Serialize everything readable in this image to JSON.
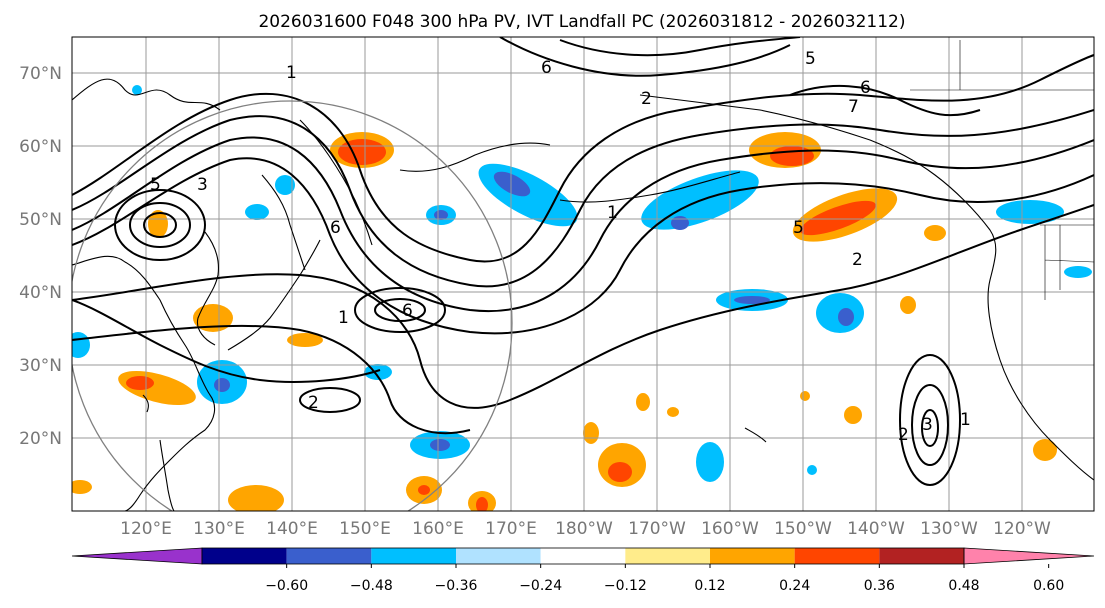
{
  "title": "2026031600 F048 300 hPa PV, IVT Landfall PC (2026031812 - 2026032112)",
  "map": {
    "lat_labels": [
      "70°N",
      "60°N",
      "50°N",
      "40°N",
      "30°N",
      "20°N"
    ],
    "lon_labels": [
      "120°E",
      "130°E",
      "140°E",
      "150°E",
      "160°E",
      "170°E",
      "180°W",
      "170°W",
      "160°W",
      "150°W",
      "140°W",
      "130°W",
      "120°W"
    ],
    "contour_labels": [
      "1",
      "2",
      "3",
      "4",
      "5",
      "6",
      "7"
    ],
    "colors": {
      "coast": "#000000",
      "grid": "#9a9a9a",
      "contour": "#000000",
      "tick_label": "#777777",
      "circle": "#808080"
    }
  },
  "colorbar": {
    "tick_labels": [
      "−0.60",
      "−0.48",
      "−0.36",
      "−0.24",
      "−0.12",
      "0.12",
      "0.24",
      "0.36",
      "0.48",
      "0.60"
    ],
    "colors": [
      "#9932cc",
      "#00008b",
      "#3a5fcd",
      "#00bfff",
      "#b0e2ff",
      "#ffffff",
      "#ffec8b",
      "#ffa500",
      "#ff4500",
      "#b22222",
      "#ff82ab"
    ]
  }
}
